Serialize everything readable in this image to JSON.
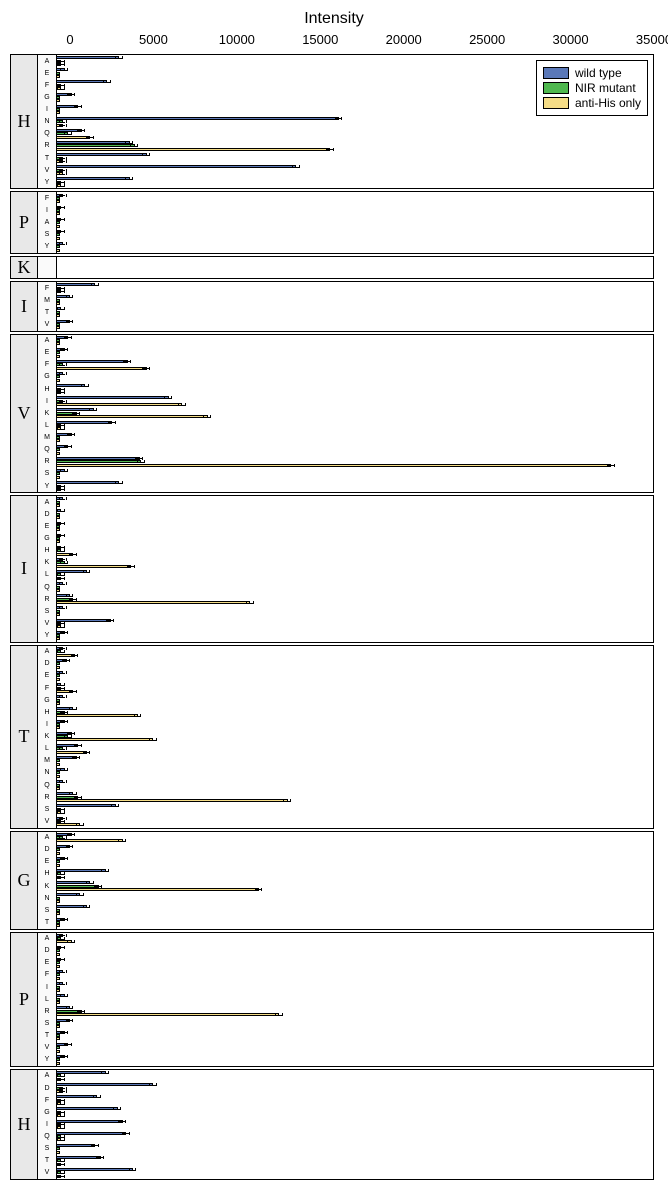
{
  "chart": {
    "type": "bar",
    "orientation": "horizontal",
    "background_color": "#ffffff",
    "axis_title": "Intensity",
    "axis_title_fontsize": 16,
    "xlim": [
      0,
      35000
    ],
    "x_ticks": [
      0,
      5000,
      10000,
      15000,
      20000,
      25000,
      30000,
      35000
    ],
    "tick_fontsize": 13,
    "panel_label_bg": "#e8e8e8",
    "panel_label_fontfamily": "Times New Roman, serif",
    "panel_border_color": "#000000",
    "series": [
      {
        "name": "wild type",
        "color": "#5a78b8",
        "border": "#000000"
      },
      {
        "name": "NIR mutant",
        "color": "#4fb84f",
        "border": "#000000"
      },
      {
        "name": "anti-His only",
        "color": "#f5dd87",
        "border": "#000000"
      }
    ],
    "legend": {
      "position": "top-right",
      "border": "#000000",
      "bg": "#ffffff",
      "fontsize": 12
    },
    "default_error": 200,
    "panels": [
      {
        "label": "H",
        "rows": [
          {
            "sub": "A",
            "v": [
              3600,
              200,
              200
            ]
          },
          {
            "sub": "E",
            "v": [
              400,
              100,
              100
            ]
          },
          {
            "sub": "F",
            "v": [
              2900,
              200,
              200
            ]
          },
          {
            "sub": "G",
            "v": [
              800,
              100,
              100
            ]
          },
          {
            "sub": "I",
            "v": [
              1200,
              100,
              100
            ]
          },
          {
            "sub": "N",
            "v": [
              16500,
              300,
              300
            ]
          },
          {
            "sub": "Q",
            "v": [
              1400,
              600,
              1900
            ]
          },
          {
            "sub": "R",
            "v": [
              4200,
              4500,
              16000
            ]
          },
          {
            "sub": "T",
            "v": [
              5200,
              300,
              300
            ]
          },
          {
            "sub": "V",
            "v": [
              14000,
              300,
              300
            ]
          },
          {
            "sub": "Y",
            "v": [
              4200,
              200,
              200
            ]
          }
        ]
      },
      {
        "label": "P",
        "rows": [
          {
            "sub": "F",
            "v": [
              300,
              100,
              100
            ]
          },
          {
            "sub": "I",
            "v": [
              200,
              100,
              100
            ]
          },
          {
            "sub": "A",
            "v": [
              200,
              100,
              100
            ]
          },
          {
            "sub": "S",
            "v": [
              200,
              100,
              100
            ]
          },
          {
            "sub": "Y",
            "v": [
              300,
              100,
              100
            ]
          }
        ]
      },
      {
        "label": "K",
        "rows": []
      },
      {
        "label": "I",
        "rows": [
          {
            "sub": "F",
            "v": [
              2200,
              200,
              200
            ]
          },
          {
            "sub": "M",
            "v": [
              700,
              100,
              100
            ]
          },
          {
            "sub": "T",
            "v": [
              200,
              100,
              100
            ]
          },
          {
            "sub": "V",
            "v": [
              700,
              100,
              100
            ]
          }
        ]
      },
      {
        "label": "V",
        "rows": [
          {
            "sub": "A",
            "v": [
              600,
              100,
              100
            ]
          },
          {
            "sub": "E",
            "v": [
              400,
              100,
              100
            ]
          },
          {
            "sub": "F",
            "v": [
              4100,
              300,
              5200
            ]
          },
          {
            "sub": "G",
            "v": [
              300,
              100,
              100
            ]
          },
          {
            "sub": "H",
            "v": [
              1600,
              200,
              200
            ]
          },
          {
            "sub": "I",
            "v": [
              6500,
              300,
              7300
            ]
          },
          {
            "sub": "K",
            "v": [
              2100,
              1100,
              8800
            ]
          },
          {
            "sub": "L",
            "v": [
              3200,
              200,
              200
            ]
          },
          {
            "sub": "M",
            "v": [
              800,
              100,
              100
            ]
          },
          {
            "sub": "Q",
            "v": [
              600,
              100,
              100
            ]
          },
          {
            "sub": "R",
            "v": [
              4800,
              4900,
              32500
            ]
          },
          {
            "sub": "S",
            "v": [
              400,
              100,
              100
            ]
          },
          {
            "sub": "Y",
            "v": [
              3600,
              200,
              200
            ]
          }
        ]
      },
      {
        "label": "I",
        "rows": [
          {
            "sub": "A",
            "v": [
              300,
              100,
              100
            ]
          },
          {
            "sub": "D",
            "v": [
              200,
              100,
              100
            ]
          },
          {
            "sub": "E",
            "v": [
              200,
              100,
              100
            ]
          },
          {
            "sub": "G",
            "v": [
              200,
              100,
              100
            ]
          },
          {
            "sub": "H",
            "v": [
              200,
              200,
              900
            ]
          },
          {
            "sub": "K",
            "v": [
              300,
              400,
              4300
            ]
          },
          {
            "sub": "L",
            "v": [
              1700,
              200,
              200
            ]
          },
          {
            "sub": "Q",
            "v": [
              300,
              100,
              100
            ]
          },
          {
            "sub": "R",
            "v": [
              700,
              900,
              11300
            ]
          },
          {
            "sub": "S",
            "v": [
              300,
              100,
              100
            ]
          },
          {
            "sub": "V",
            "v": [
              3100,
              200,
              200
            ]
          },
          {
            "sub": "Y",
            "v": [
              400,
              100,
              100
            ]
          }
        ]
      },
      {
        "label": "T",
        "rows": [
          {
            "sub": "A",
            "v": [
              300,
              200,
              1000
            ]
          },
          {
            "sub": "D",
            "v": [
              500,
              100,
              100
            ]
          },
          {
            "sub": "E",
            "v": [
              300,
              100,
              100
            ]
          },
          {
            "sub": "F",
            "v": [
              200,
              200,
              900
            ]
          },
          {
            "sub": "G",
            "v": [
              300,
              100,
              100
            ]
          },
          {
            "sub": "H",
            "v": [
              900,
              400,
              4700
            ]
          },
          {
            "sub": "I",
            "v": [
              400,
              100,
              100
            ]
          },
          {
            "sub": "K",
            "v": [
              800,
              600,
              5600
            ]
          },
          {
            "sub": "L",
            "v": [
              1200,
              300,
              1700
            ]
          },
          {
            "sub": "M",
            "v": [
              1100,
              100,
              100
            ]
          },
          {
            "sub": "N",
            "v": [
              400,
              100,
              100
            ]
          },
          {
            "sub": "Q",
            "v": [
              300,
              100,
              100
            ]
          },
          {
            "sub": "R",
            "v": [
              900,
              1200,
              13500
            ]
          },
          {
            "sub": "S",
            "v": [
              3400,
              200,
              200
            ]
          },
          {
            "sub": "V",
            "v": [
              300,
              200,
              1300
            ]
          }
        ]
      },
      {
        "label": "G",
        "rows": [
          {
            "sub": "A",
            "v": [
              800,
              300,
              3800
            ]
          },
          {
            "sub": "D",
            "v": [
              700,
              100,
              100
            ]
          },
          {
            "sub": "E",
            "v": [
              400,
              100,
              100
            ]
          },
          {
            "sub": "H",
            "v": [
              2800,
              200,
              200
            ]
          },
          {
            "sub": "K",
            "v": [
              1900,
              2400,
              11800
            ]
          },
          {
            "sub": "N",
            "v": [
              1300,
              100,
              100
            ]
          },
          {
            "sub": "S",
            "v": [
              1700,
              100,
              100
            ]
          },
          {
            "sub": "T",
            "v": [
              400,
              100,
              100
            ]
          }
        ]
      },
      {
        "label": "P",
        "rows": [
          {
            "sub": "A",
            "v": [
              300,
              200,
              800
            ]
          },
          {
            "sub": "D",
            "v": [
              200,
              100,
              100
            ]
          },
          {
            "sub": "E",
            "v": [
              200,
              100,
              100
            ]
          },
          {
            "sub": "F",
            "v": [
              300,
              100,
              100
            ]
          },
          {
            "sub": "I",
            "v": [
              300,
              100,
              100
            ]
          },
          {
            "sub": "L",
            "v": [
              400,
              100,
              100
            ]
          },
          {
            "sub": "R",
            "v": [
              700,
              1400,
              13000
            ]
          },
          {
            "sub": "S",
            "v": [
              700,
              100,
              100
            ]
          },
          {
            "sub": "T",
            "v": [
              400,
              100,
              100
            ]
          },
          {
            "sub": "V",
            "v": [
              600,
              100,
              100
            ]
          },
          {
            "sub": "Y",
            "v": [
              400,
              100,
              100
            ]
          }
        ]
      },
      {
        "label": "H",
        "rows": [
          {
            "sub": "A",
            "v": [
              2800,
              200,
              200
            ]
          },
          {
            "sub": "D",
            "v": [
              5600,
              300,
              300
            ]
          },
          {
            "sub": "F",
            "v": [
              2300,
              200,
              200
            ]
          },
          {
            "sub": "G",
            "v": [
              3500,
              200,
              200
            ]
          },
          {
            "sub": "I",
            "v": [
              3800,
              200,
              200
            ]
          },
          {
            "sub": "Q",
            "v": [
              4000,
              200,
              200
            ]
          },
          {
            "sub": "S",
            "v": [
              2200,
              100,
              100
            ]
          },
          {
            "sub": "T",
            "v": [
              2500,
              200,
              200
            ]
          },
          {
            "sub": "V",
            "v": [
              4400,
              200,
              200
            ]
          }
        ]
      }
    ]
  }
}
